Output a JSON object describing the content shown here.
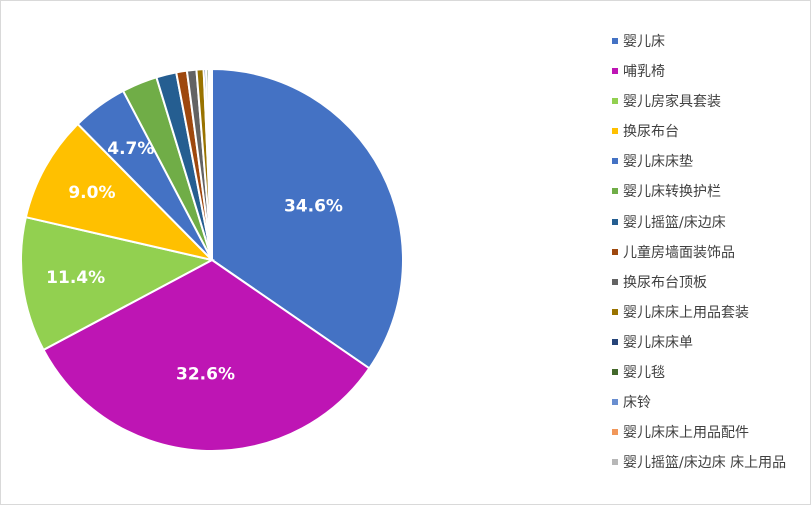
{
  "chart_data": {
    "type": "pie",
    "start_angle_deg": 0,
    "direction": "clockwise",
    "legend_position": "right",
    "categories": [
      "婴儿床",
      "哺乳椅",
      "婴儿房家具套装",
      "换尿布台",
      "婴儿床床垫",
      "婴儿床转换护栏",
      "婴儿摇篮/床边床",
      "儿童房墙面装饰品",
      "换尿布台顶板",
      "婴儿床床上用品套装",
      "婴儿床床单",
      "婴儿毯",
      "床铃",
      "婴儿床床上用品配件",
      "婴儿摇篮/床边床 床上用品"
    ],
    "values": [
      34.6,
      32.6,
      11.4,
      9.0,
      4.7,
      3.0,
      1.7,
      0.9,
      0.8,
      0.6,
      0.2,
      0.2,
      0.1,
      0.1,
      0.1
    ],
    "labels": [
      "34.6%",
      "32.6%",
      "11.4%",
      "9.0%",
      "4.7%",
      "",
      "",
      "",
      "",
      "",
      "",
      "",
      "",
      "",
      ""
    ],
    "colors": [
      "#4472C4",
      "#BE15B4",
      "#92D050",
      "#FFC000",
      "#4472C4",
      "#70AD47",
      "#255E91",
      "#9E480E",
      "#636363",
      "#997300",
      "#264478",
      "#43682B",
      "#698ED0",
      "#F1975A",
      "#B7B7B7"
    ]
  }
}
